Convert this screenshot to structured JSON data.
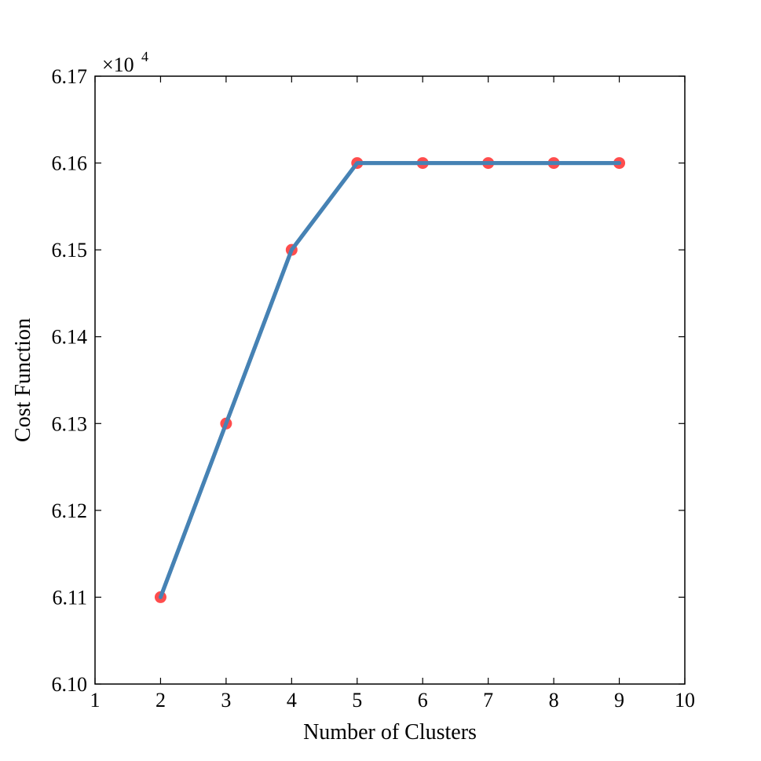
{
  "chart_data": {
    "type": "line",
    "title": "",
    "xlabel": "Number of Clusters",
    "ylabel": "Cost Function",
    "xlim": [
      1,
      10
    ],
    "ylim": [
      6.1,
      6.17
    ],
    "y_multiplier": "×10",
    "y_multiplier_exponent": "4",
    "x_ticks": [
      "1",
      "2",
      "3",
      "4",
      "5",
      "6",
      "7",
      "8",
      "9",
      "10"
    ],
    "y_ticks": [
      "6.10",
      "6.11",
      "6.12",
      "6.13",
      "6.14",
      "6.15",
      "6.16",
      "6.17"
    ],
    "grid": false,
    "series": [
      {
        "x": [
          2,
          3,
          4,
          5,
          6,
          7,
          8,
          9
        ],
        "y": [
          6.11,
          6.13,
          6.15,
          6.16,
          6.16,
          6.16,
          6.16,
          6.16
        ],
        "line_color": "#4682b4",
        "marker_color": "#ff4d4d"
      }
    ]
  }
}
